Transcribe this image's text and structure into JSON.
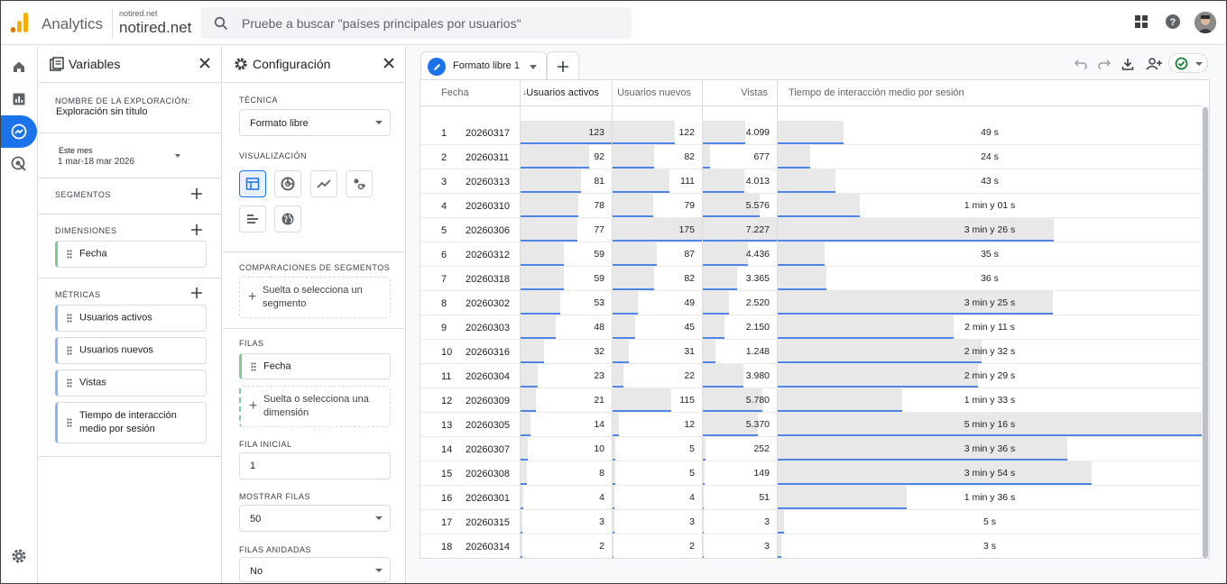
{
  "header": {
    "app_name": "Analytics",
    "account_small": "notired.net",
    "account_big": "notired.net",
    "search_placeholder": "Pruebe a buscar \"países principales por usuarios\""
  },
  "variables": {
    "title": "Variables",
    "exploration_label": "NOMBRE DE LA EXPLORACIÓN:",
    "exploration_name": "Exploración sin título",
    "date_range_label": "Este mes",
    "date_range_value": "1 mar-18 mar 2026",
    "segments_label": "SEGMENTOS",
    "dimensions_label": "DIMENSIONES",
    "dimensions": [
      "Fecha"
    ],
    "metrics_label": "MÉTRICAS",
    "metrics": [
      "Usuarios activos",
      "Usuarios nuevos",
      "Vistas",
      "Tiempo de interacción medio por sesión"
    ]
  },
  "config": {
    "title": "Configuración",
    "technique_label": "TÉCNICA",
    "technique_value": "Formato libre",
    "visualization_label": "VISUALIZACIÓN",
    "segment_comparisons_label": "COMPARACIONES DE SEGMENTOS",
    "segment_drop": "Suelta o selecciona un segmento",
    "rows_label": "FILAS",
    "rows_item": "Fecha",
    "rows_drop": "Suelta o selecciona una dimensión",
    "start_row_label": "FILA INICIAL",
    "start_row_value": "1",
    "show_rows_label": "MOSTRAR FILAS",
    "show_rows_value": "50",
    "nested_rows_label": "FILAS ANIDADAS",
    "nested_rows_value": "No"
  },
  "tab": {
    "label": "Formato libre 1"
  },
  "table": {
    "columns": [
      "Fecha",
      "Usuarios activos",
      "Usuarios nuevos",
      "Vistas",
      "Tiempo de interacción medio por sesión"
    ],
    "rows": [
      {
        "idx": "1",
        "date": "20260317",
        "active": 123,
        "new": 122,
        "views": "4.099",
        "views_n": 4099,
        "time": "49 s",
        "time_s": 49
      },
      {
        "idx": "2",
        "date": "20260311",
        "active": 92,
        "new": 82,
        "views": "677",
        "views_n": 677,
        "time": "24 s",
        "time_s": 24
      },
      {
        "idx": "3",
        "date": "20260313",
        "active": 81,
        "new": 111,
        "views": "4.013",
        "views_n": 4013,
        "time": "43 s",
        "time_s": 43
      },
      {
        "idx": "4",
        "date": "20260310",
        "active": 78,
        "new": 79,
        "views": "5.576",
        "views_n": 5576,
        "time": "1 min y 01 s",
        "time_s": 61
      },
      {
        "idx": "5",
        "date": "20260306",
        "active": 77,
        "new": 175,
        "views": "7.227",
        "views_n": 7227,
        "time": "3 min y 26 s",
        "time_s": 206
      },
      {
        "idx": "6",
        "date": "20260312",
        "active": 59,
        "new": 87,
        "views": "4.436",
        "views_n": 4436,
        "time": "35 s",
        "time_s": 35
      },
      {
        "idx": "7",
        "date": "20260318",
        "active": 59,
        "new": 82,
        "views": "3.365",
        "views_n": 3365,
        "time": "36 s",
        "time_s": 36
      },
      {
        "idx": "8",
        "date": "20260302",
        "active": 53,
        "new": 49,
        "views": "2.520",
        "views_n": 2520,
        "time": "3 min y 25 s",
        "time_s": 205
      },
      {
        "idx": "9",
        "date": "20260303",
        "active": 48,
        "new": 45,
        "views": "2.150",
        "views_n": 2150,
        "time": "2 min y 11 s",
        "time_s": 131
      },
      {
        "idx": "10",
        "date": "20260316",
        "active": 32,
        "new": 31,
        "views": "1.248",
        "views_n": 1248,
        "time": "2 min y 32 s",
        "time_s": 152
      },
      {
        "idx": "11",
        "date": "20260304",
        "active": 23,
        "new": 22,
        "views": "3.980",
        "views_n": 3980,
        "time": "2 min y 29 s",
        "time_s": 149
      },
      {
        "idx": "12",
        "date": "20260309",
        "active": 21,
        "new": 115,
        "views": "5.780",
        "views_n": 5780,
        "time": "1 min y 33 s",
        "time_s": 93
      },
      {
        "idx": "13",
        "date": "20260305",
        "active": 14,
        "new": 12,
        "views": "5.370",
        "views_n": 5370,
        "time": "5 min y 16 s",
        "time_s": 316
      },
      {
        "idx": "14",
        "date": "20260307",
        "active": 10,
        "new": 5,
        "views": "252",
        "views_n": 252,
        "time": "3 min y 36 s",
        "time_s": 216
      },
      {
        "idx": "15",
        "date": "20260308",
        "active": 8,
        "new": 5,
        "views": "149",
        "views_n": 149,
        "time": "3 min y 54 s",
        "time_s": 234
      },
      {
        "idx": "16",
        "date": "20260301",
        "active": 4,
        "new": 4,
        "views": "51",
        "views_n": 51,
        "time": "1 min y 36 s",
        "time_s": 96
      },
      {
        "idx": "17",
        "date": "20260315",
        "active": 3,
        "new": 3,
        "views": "3",
        "views_n": 3,
        "time": "5 s",
        "time_s": 5
      },
      {
        "idx": "18",
        "date": "20260314",
        "active": 2,
        "new": 2,
        "views": "3",
        "views_n": 3,
        "time": "3 s",
        "time_s": 3
      }
    ]
  },
  "colors": {
    "accent": "#1a73e8",
    "bar_line": "#4f86e6",
    "bar_bg": "#e8e8e8"
  }
}
